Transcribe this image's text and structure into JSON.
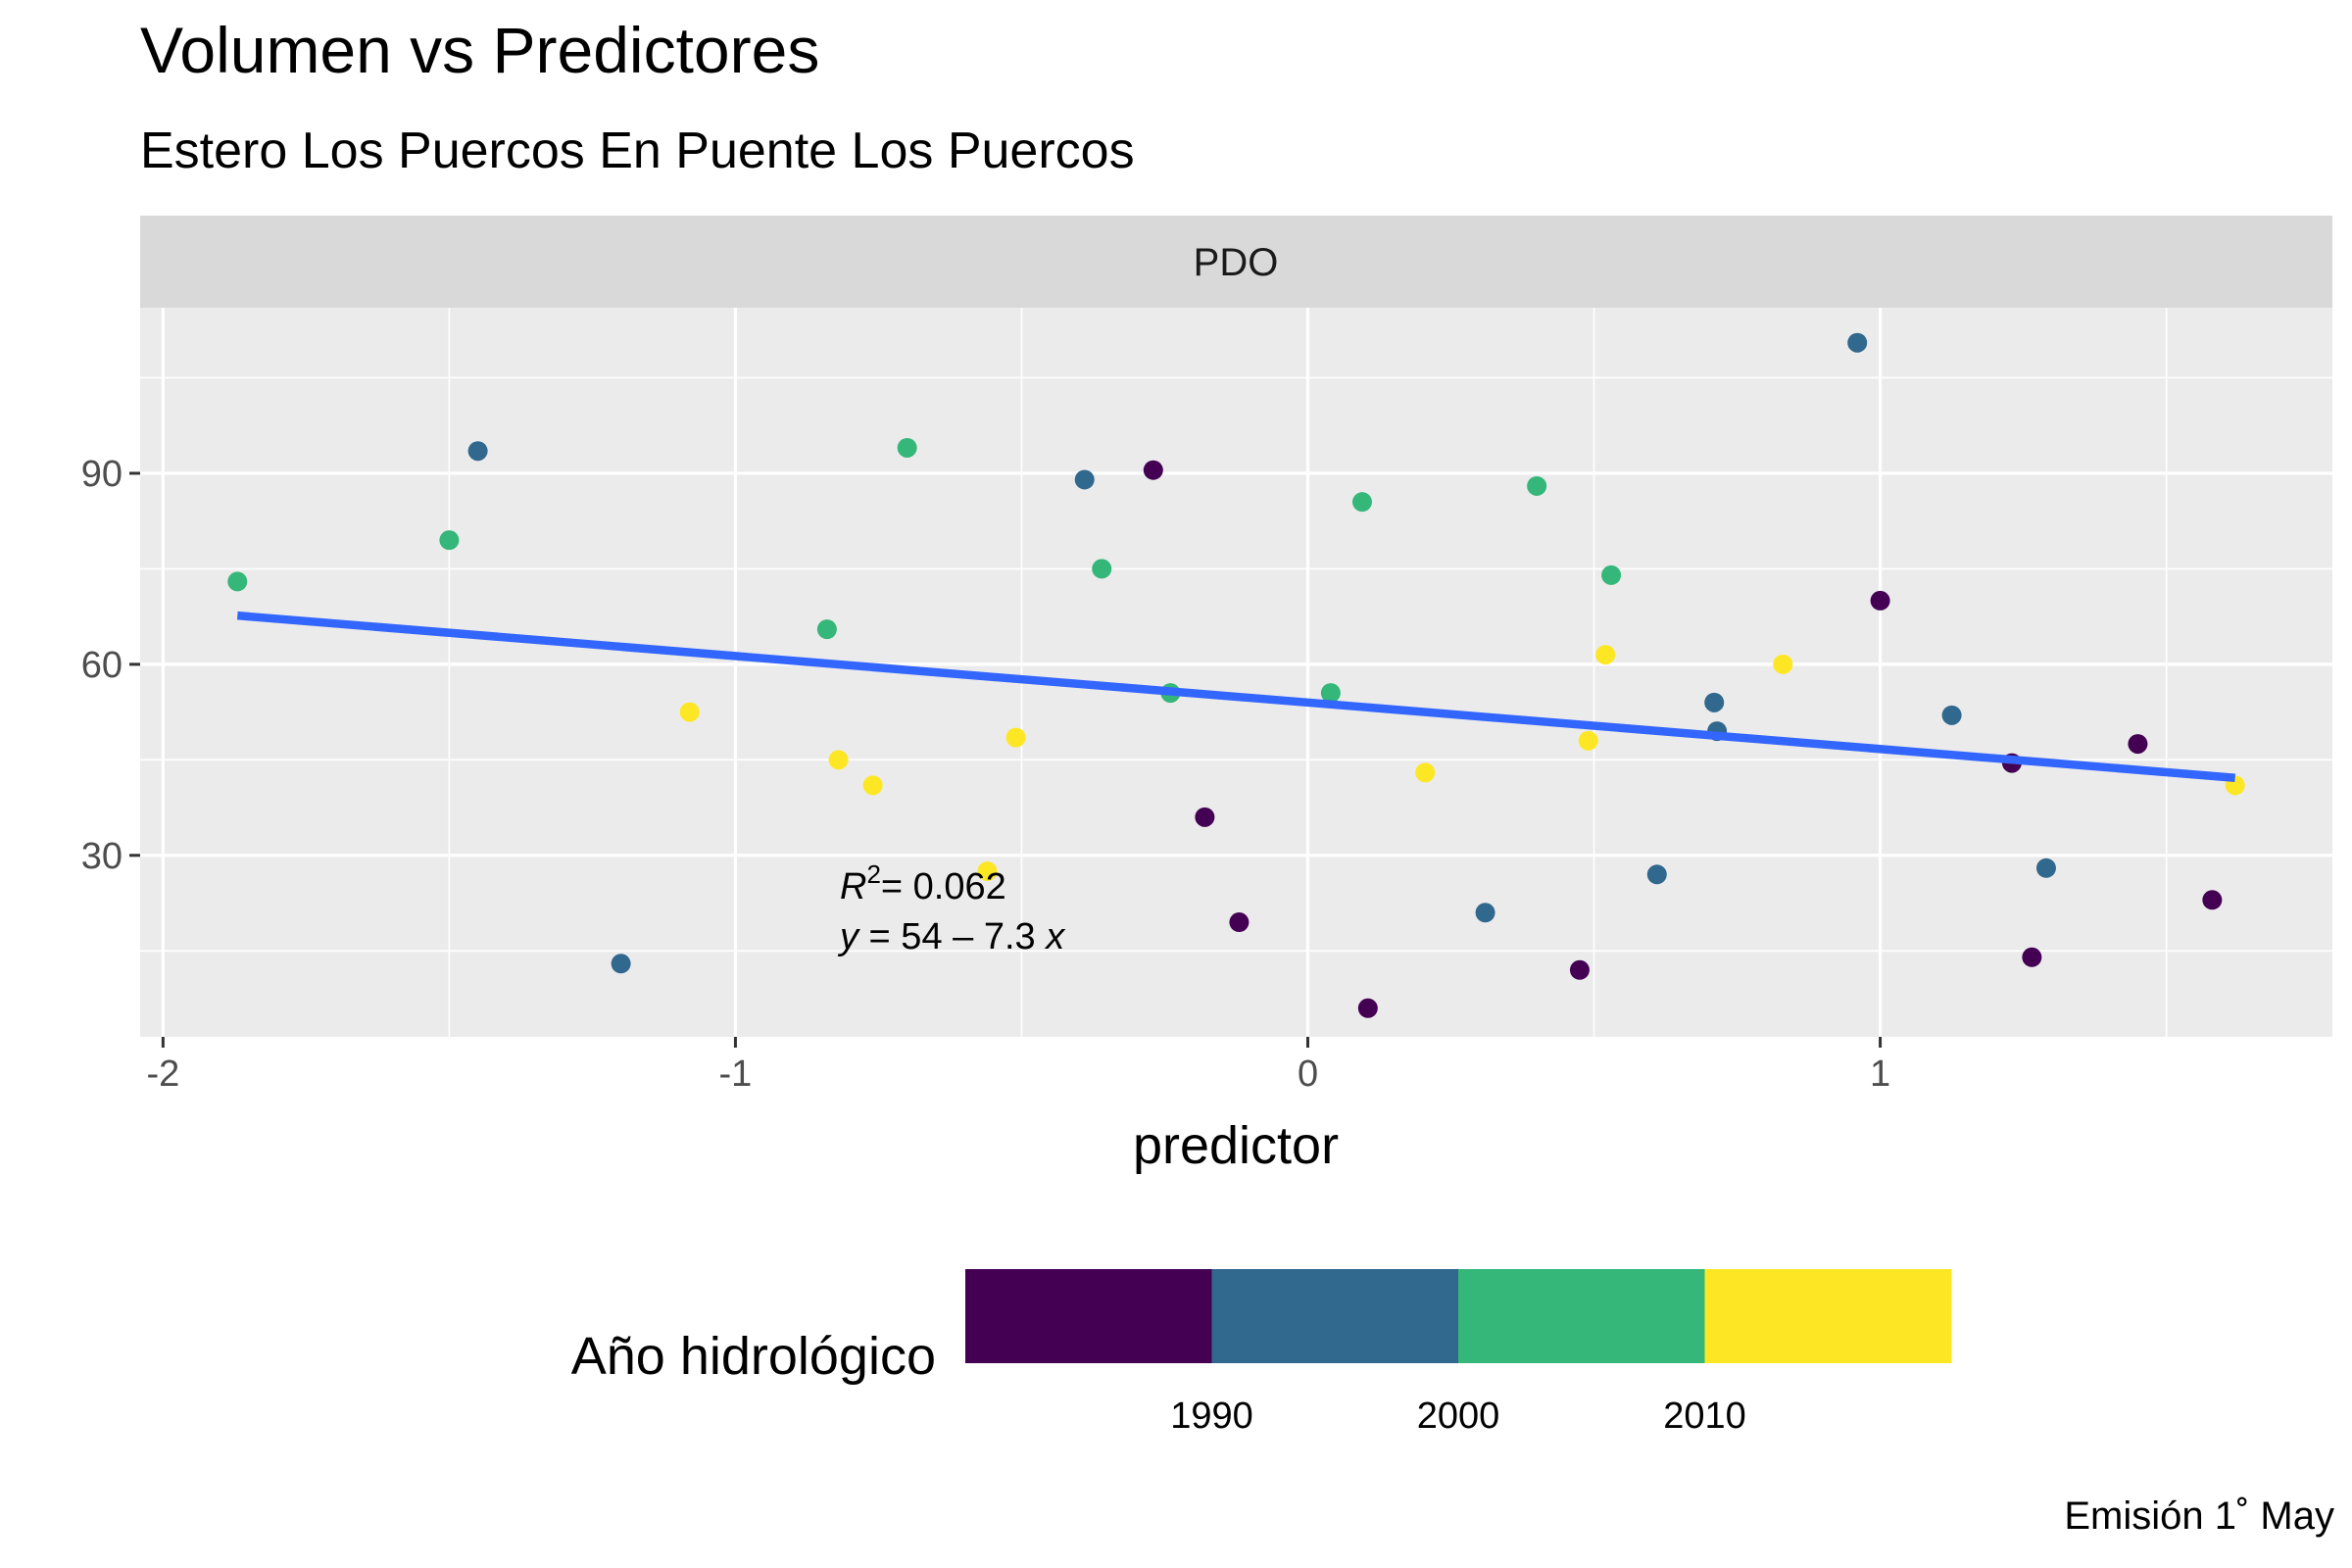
{
  "title": "Volumen vs Predictores",
  "subtitle": "Estero Los Puercos En Puente Los Puercos",
  "caption": "Emisión 1˚ May",
  "chart_data": {
    "type": "scatter",
    "facet": "PDO",
    "xlabel": "predictor",
    "ylabel": "",
    "xlim": [
      -2.04,
      1.79
    ],
    "ylim": [
      1.5,
      116
    ],
    "x_ticks": [
      -2,
      -1,
      0,
      1
    ],
    "x_tick_labels": [
      "-2",
      "-1",
      "0",
      "1"
    ],
    "y_ticks": [
      30,
      60,
      90
    ],
    "y_tick_labels": [
      "30",
      "60",
      "90"
    ],
    "grid": true,
    "fit": {
      "type": "linear",
      "intercept": 54,
      "slope": -7.3,
      "x_range": [
        -1.87,
        1.62
      ],
      "color": "#3366FF",
      "r2_label": "R",
      "r2_value": "= 0.062",
      "equation": {
        "y": "y",
        "eq": " = 54 – 7.3 ",
        "x": "x"
      }
    },
    "legend": {
      "title": "Año hidrológico",
      "position": "bottom",
      "bins": [
        {
          "color": "#440154"
        },
        {
          "color": "#31688E"
        },
        {
          "color": "#35B779"
        },
        {
          "color": "#FDE725"
        }
      ],
      "breaks": [
        "1990",
        "2000",
        "2010"
      ]
    },
    "points": [
      {
        "x": -1.87,
        "y": 73,
        "color": "#35B779"
      },
      {
        "x": -1.5,
        "y": 79.5,
        "color": "#35B779"
      },
      {
        "x": -1.45,
        "y": 93.5,
        "color": "#31688E"
      },
      {
        "x": -1.2,
        "y": 13,
        "color": "#31688E"
      },
      {
        "x": -1.08,
        "y": 52.5,
        "color": "#FDE725"
      },
      {
        "x": -0.84,
        "y": 65.5,
        "color": "#35B779"
      },
      {
        "x": -0.82,
        "y": 45,
        "color": "#FDE725"
      },
      {
        "x": -0.76,
        "y": 41,
        "color": "#FDE725"
      },
      {
        "x": -0.7,
        "y": 94,
        "color": "#35B779"
      },
      {
        "x": -0.56,
        "y": 27.5,
        "color": "#FDE725"
      },
      {
        "x": -0.51,
        "y": 48.5,
        "color": "#FDE725"
      },
      {
        "x": -0.39,
        "y": 89,
        "color": "#31688E"
      },
      {
        "x": -0.36,
        "y": 75,
        "color": "#35B779"
      },
      {
        "x": -0.27,
        "y": 90.5,
        "color": "#440154"
      },
      {
        "x": -0.24,
        "y": 55.5,
        "color": "#35B779"
      },
      {
        "x": -0.18,
        "y": 36,
        "color": "#440154"
      },
      {
        "x": -0.12,
        "y": 19.5,
        "color": "#440154"
      },
      {
        "x": 0.04,
        "y": 55.5,
        "color": "#35B779"
      },
      {
        "x": 0.095,
        "y": 85.5,
        "color": "#35B779"
      },
      {
        "x": 0.105,
        "y": 6,
        "color": "#440154"
      },
      {
        "x": 0.205,
        "y": 43,
        "color": "#FDE725"
      },
      {
        "x": 0.31,
        "y": 21,
        "color": "#31688E"
      },
      {
        "x": 0.4,
        "y": 88,
        "color": "#35B779"
      },
      {
        "x": 0.475,
        "y": 12,
        "color": "#440154"
      },
      {
        "x": 0.49,
        "y": 48,
        "color": "#FDE725"
      },
      {
        "x": 0.52,
        "y": 61.5,
        "color": "#FDE725"
      },
      {
        "x": 0.53,
        "y": 74,
        "color": "#35B779"
      },
      {
        "x": 0.61,
        "y": 27,
        "color": "#31688E"
      },
      {
        "x": 0.71,
        "y": 54,
        "color": "#31688E"
      },
      {
        "x": 0.715,
        "y": 49.5,
        "color": "#31688E"
      },
      {
        "x": 0.83,
        "y": 60,
        "color": "#FDE725"
      },
      {
        "x": 0.96,
        "y": 110.5,
        "color": "#31688E"
      },
      {
        "x": 1.0,
        "y": 70,
        "color": "#440154"
      },
      {
        "x": 1.125,
        "y": 52,
        "color": "#31688E"
      },
      {
        "x": 1.23,
        "y": 44.5,
        "color": "#440154"
      },
      {
        "x": 1.265,
        "y": 14,
        "color": "#440154"
      },
      {
        "x": 1.29,
        "y": 28,
        "color": "#31688E"
      },
      {
        "x": 1.45,
        "y": 47.5,
        "color": "#440154"
      },
      {
        "x": 1.58,
        "y": 23,
        "color": "#440154"
      },
      {
        "x": 1.62,
        "y": 41,
        "color": "#FDE725"
      }
    ]
  }
}
